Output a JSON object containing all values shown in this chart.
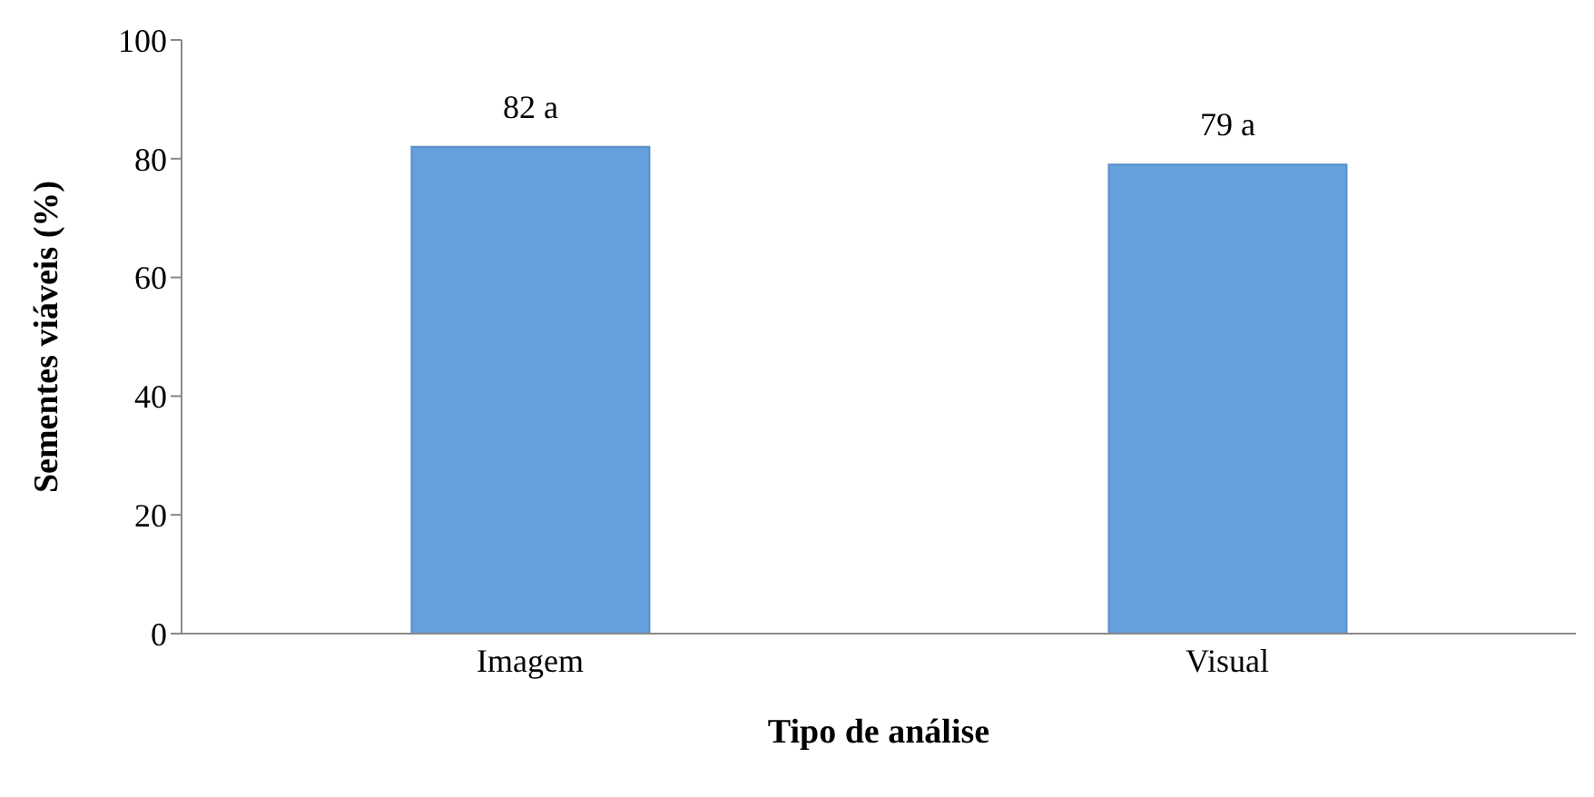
{
  "chart_data": {
    "type": "bar",
    "xlabel": "Tipo de análise",
    "ylabel": "Sementes viáveis (%)",
    "categories": [
      "Imagem",
      "Visual"
    ],
    "values": [
      82,
      79
    ],
    "value_labels": [
      "82 a",
      "79 a"
    ],
    "color": "#659fdc",
    "ylim": [
      0,
      100
    ],
    "yticks": [
      0,
      20,
      40,
      60,
      80,
      100
    ],
    "grid": false,
    "legend": false
  }
}
